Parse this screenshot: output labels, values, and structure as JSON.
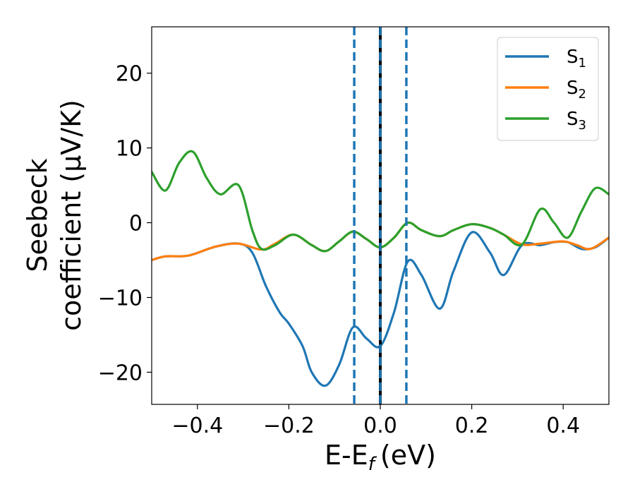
{
  "chart_data": {
    "type": "line",
    "title": "",
    "xlabel": "E-E",
    "xlabel_sub": "f",
    "xlabel_unit": "(eV)",
    "ylabel_line1": "Seebeck",
    "ylabel_line2": "coefficient  (μV/K)",
    "xlim": [
      -0.5,
      0.5
    ],
    "ylim": [
      -24.3,
      26.2
    ],
    "xticks": [
      -0.4,
      -0.2,
      0.0,
      0.2,
      0.4
    ],
    "xtick_labels": [
      "−0.4",
      "−0.2",
      "0.0",
      "0.2",
      "0.4"
    ],
    "yticks": [
      -20,
      -10,
      0,
      10,
      20
    ],
    "ytick_labels": [
      "−20",
      "−10",
      "0",
      "10",
      "20"
    ],
    "grid": false,
    "legend_position": "top-right",
    "series": [
      {
        "name": "S",
        "subscript": "1",
        "color": "#1f77b4",
        "x": [
          -0.5,
          -0.47,
          -0.42,
          -0.36,
          -0.31,
          -0.28,
          -0.25,
          -0.22,
          -0.2,
          -0.17,
          -0.15,
          -0.12,
          -0.09,
          -0.06,
          -0.03,
          0.0,
          0.03,
          0.06,
          0.09,
          0.13,
          0.16,
          0.2,
          0.24,
          0.27,
          0.31,
          0.35,
          0.38,
          0.41,
          0.44,
          0.47,
          0.5
        ],
        "y": [
          -5.0,
          -4.5,
          -4.4,
          -3.2,
          -2.8,
          -4.0,
          -8.5,
          -12.0,
          -13.5,
          -16.5,
          -20.0,
          -21.8,
          -19.0,
          -14.0,
          -15.5,
          -16.5,
          -12.0,
          -5.2,
          -7.0,
          -11.5,
          -6.5,
          -1.3,
          -4.0,
          -7.0,
          -3.0,
          -3.0,
          -2.6,
          -2.6,
          -3.5,
          -3.3,
          -2.0
        ]
      },
      {
        "name": "S",
        "subscript": "2",
        "color": "#ff7f0e",
        "x": [
          -0.5,
          -0.47,
          -0.42,
          -0.36,
          -0.31,
          -0.26,
          -0.23,
          -0.19,
          -0.15,
          -0.12,
          -0.09,
          -0.06,
          -0.03,
          0.0,
          0.03,
          0.06,
          0.09,
          0.13,
          0.16,
          0.2,
          0.24,
          0.27,
          0.31,
          0.35,
          0.4,
          0.43,
          0.46,
          0.5
        ],
        "y": [
          -5.0,
          -4.5,
          -4.4,
          -3.2,
          -2.8,
          -3.6,
          -2.8,
          -1.6,
          -3.0,
          -3.8,
          -2.5,
          -1.2,
          -2.2,
          -3.3,
          -2.0,
          0.0,
          -1.0,
          -1.8,
          -1.0,
          -0.2,
          -0.7,
          -1.6,
          -2.9,
          -2.8,
          -2.5,
          -3.0,
          -3.5,
          -2.0
        ]
      },
      {
        "name": "S",
        "subscript": "3",
        "color": "#2ca02c",
        "x": [
          -0.5,
          -0.47,
          -0.44,
          -0.41,
          -0.38,
          -0.35,
          -0.31,
          -0.28,
          -0.26,
          -0.23,
          -0.19,
          -0.15,
          -0.12,
          -0.09,
          -0.06,
          -0.03,
          0.0,
          0.03,
          0.06,
          0.09,
          0.13,
          0.16,
          0.2,
          0.24,
          0.27,
          0.31,
          0.35,
          0.38,
          0.41,
          0.44,
          0.47,
          0.5
        ],
        "y": [
          6.8,
          4.3,
          8.0,
          9.5,
          6.0,
          3.8,
          5.0,
          -1.0,
          -3.5,
          -3.0,
          -1.6,
          -3.0,
          -3.8,
          -2.5,
          -1.2,
          -2.2,
          -3.3,
          -2.0,
          0.0,
          -1.0,
          -1.8,
          -1.0,
          -0.2,
          -0.7,
          -1.6,
          -2.9,
          1.8,
          0.0,
          -2.0,
          1.5,
          4.6,
          3.8
        ]
      }
    ],
    "vlines": [
      {
        "x": -0.057,
        "style": "dashed",
        "color": "#1f77b4"
      },
      {
        "x": 0.0,
        "style": "solid",
        "color": "#000000"
      },
      {
        "x": 0.0,
        "style": "dashed",
        "color": "#1f77b4"
      },
      {
        "x": 0.057,
        "style": "dashed",
        "color": "#1f77b4"
      }
    ]
  }
}
